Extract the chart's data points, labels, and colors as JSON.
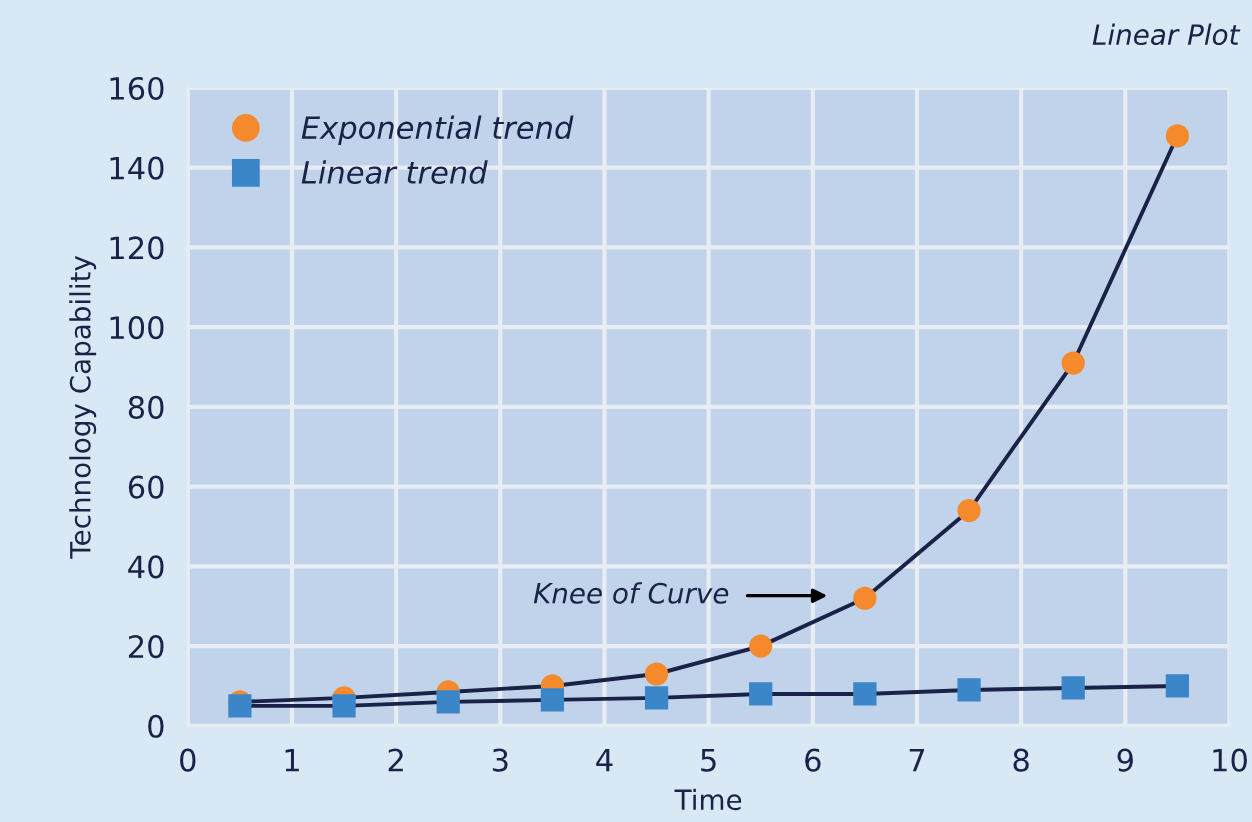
{
  "chart_data": {
    "type": "line",
    "xlabel": "Time",
    "ylabel": "Technology Capability",
    "x": [
      0.5,
      1.5,
      2.5,
      3.5,
      4.5,
      5.5,
      6.5,
      7.5,
      8.5,
      9.5
    ],
    "series": [
      {
        "name": "Exponential trend",
        "color": "#f58a2d",
        "marker": "circle",
        "values": [
          6,
          7,
          8.5,
          10,
          13,
          20,
          32,
          54,
          91,
          148
        ]
      },
      {
        "name": "Linear trend",
        "color": "#3a86c8",
        "marker": "square",
        "values": [
          5,
          5,
          6,
          6.5,
          7,
          8,
          8,
          9,
          9.5,
          10
        ]
      }
    ],
    "annotations": [
      "Linear Plot",
      "Knee of Curve"
    ],
    "xlim": [
      0,
      10
    ],
    "xticks": [
      0,
      1,
      2,
      3,
      4,
      5,
      6,
      7,
      8,
      9,
      10
    ],
    "ylim": [
      0,
      160
    ],
    "yticks": [
      0,
      20,
      40,
      60,
      80,
      100,
      120,
      140,
      160
    ],
    "grid": true,
    "legend": "top left",
    "line_style": "solid"
  }
}
